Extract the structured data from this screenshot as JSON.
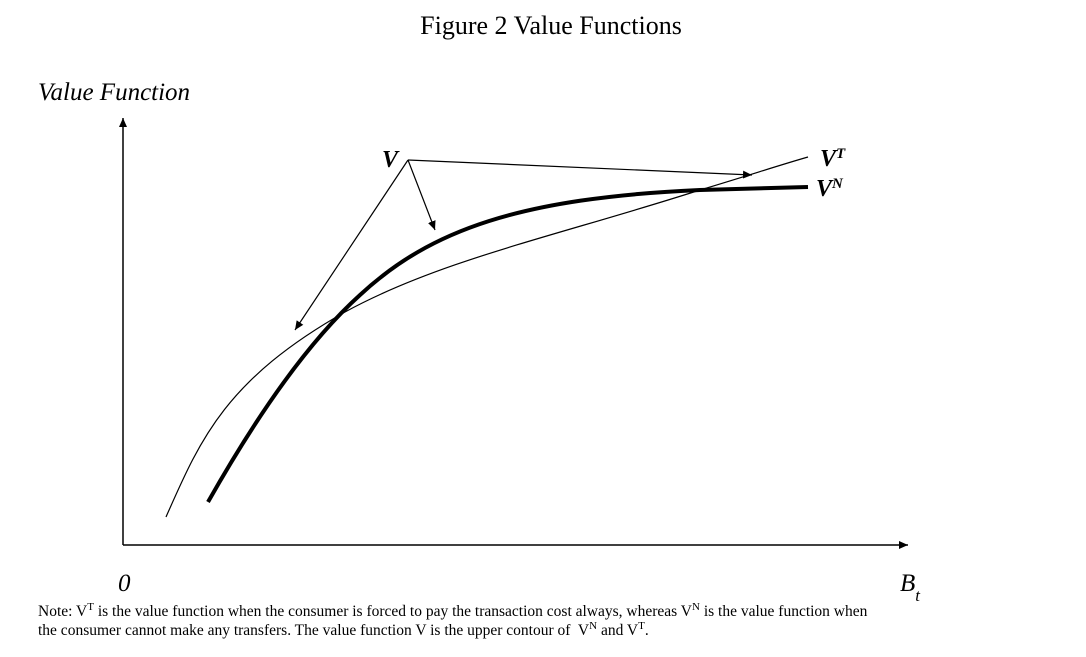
{
  "title": "Figure 2 Value Functions",
  "axes": {
    "y_label": "Value Function",
    "origin": "0",
    "x_label": {
      "base": "B",
      "sub": "t"
    }
  },
  "curve_labels": {
    "v": "V",
    "vt": {
      "base": "V",
      "sup": "T"
    },
    "vn": {
      "base": "V",
      "sup": "N"
    }
  },
  "note": {
    "lines": [
      [
        {
          "text": "Note: V"
        },
        {
          "text": "T",
          "sup": true
        },
        {
          "text": " is the value function when the consumer is forced to pay the transaction cost always, whereas V"
        },
        {
          "text": "N",
          "sup": true
        },
        {
          "text": " is the value function when"
        }
      ],
      [
        {
          "text": "the consumer cannot make any transfers. The value function V is the upper contour of  V"
        },
        {
          "text": "N",
          "sup": true
        },
        {
          "text": " and V"
        },
        {
          "text": "T",
          "sup": true
        },
        {
          "text": "."
        }
      ]
    ]
  }
}
